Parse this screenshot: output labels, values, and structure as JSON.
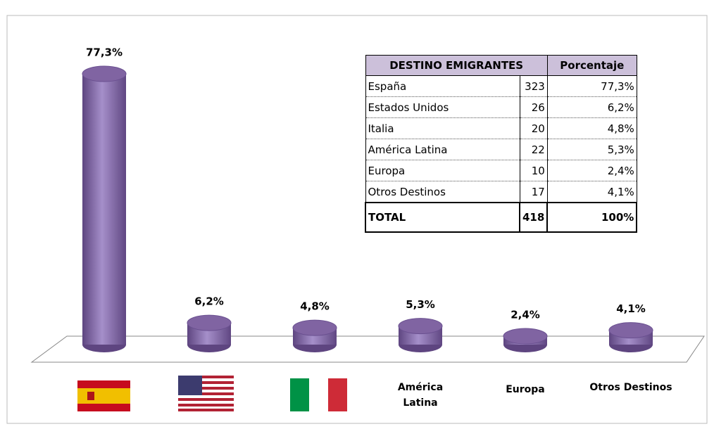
{
  "chart_data": {
    "type": "bar",
    "categories": [
      null,
      null,
      null,
      "América Latina",
      "Europa",
      "Otros Destinos"
    ],
    "values": [
      77.3,
      6.2,
      4.8,
      5.3,
      2.4,
      4.1
    ],
    "value_labels": [
      "77,3%",
      "6,2%",
      "4,8%",
      "5,3%",
      "2,4%",
      "4,1%"
    ],
    "color": "#8064a2"
  },
  "table": {
    "header": [
      "DESTINO EMIGRANTES",
      "Porcentaje"
    ],
    "rows": [
      [
        "España",
        "323",
        "77,3%"
      ],
      [
        "Estados Unidos",
        "26",
        "6,2%"
      ],
      [
        "Italia",
        "20",
        "4,8%"
      ],
      [
        "América Latina",
        "22",
        "5,3%"
      ],
      [
        "Europa",
        "10",
        "2,4%"
      ],
      [
        "Otros Destinos",
        "17",
        "4,1%"
      ]
    ],
    "total": [
      "TOTAL",
      "418",
      "100%"
    ]
  }
}
